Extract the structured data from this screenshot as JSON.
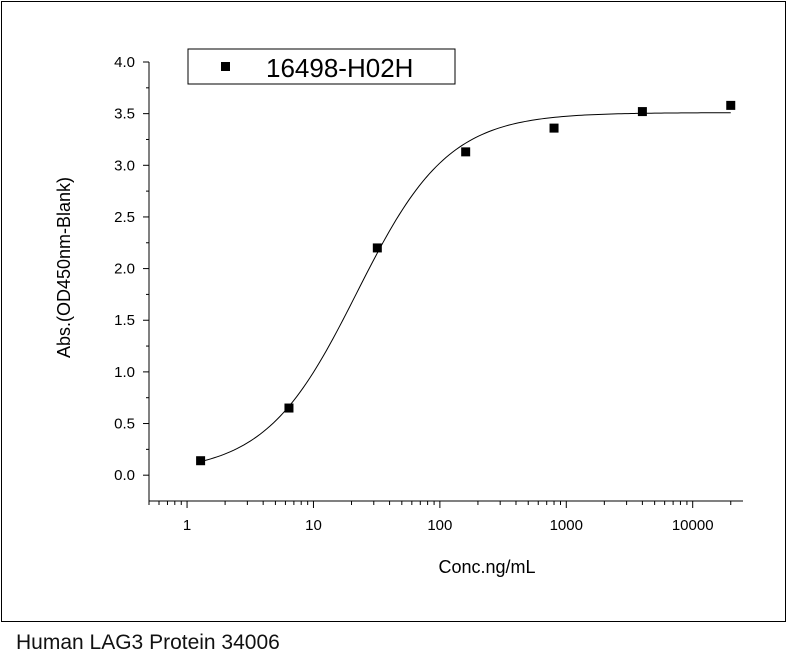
{
  "chart_data": {
    "type": "scatter",
    "xlabel": "Conc.ng/mL",
    "ylabel": "Abs.(OD450nm-Blank)",
    "x_scale": "log",
    "xlim": [
      0.5,
      25000
    ],
    "ylim": [
      -0.25,
      4.0
    ],
    "x_ticks": [
      1,
      10,
      100,
      1000,
      10000
    ],
    "x_tick_labels": [
      "1",
      "10",
      "100",
      "1000",
      "10000"
    ],
    "y_ticks": [
      0.0,
      0.5,
      1.0,
      1.5,
      2.0,
      2.5,
      3.0,
      3.5,
      4.0
    ],
    "y_tick_labels": [
      "0.0",
      "0.5",
      "1.0",
      "1.5",
      "2.0",
      "2.5",
      "3.0",
      "3.5",
      "4.0"
    ],
    "grid": false,
    "legend_position": "top-left",
    "series": [
      {
        "name": "16498-H02H",
        "marker": "square",
        "color": "#000000",
        "x": [
          1.28,
          6.4,
          32,
          160,
          800,
          4000,
          20000
        ],
        "y": [
          0.14,
          0.65,
          2.2,
          3.13,
          3.36,
          3.52,
          3.58
        ]
      }
    ],
    "fit_curve": {
      "type": "4PL",
      "bottom": 0.02,
      "top": 3.51,
      "ec50": 22,
      "hill": 1.2,
      "color": "#000000"
    }
  },
  "caption": "Human LAG3 Protein 34006"
}
